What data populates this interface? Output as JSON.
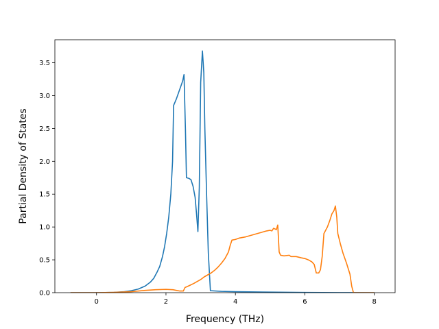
{
  "chart_data": {
    "type": "line",
    "title": "",
    "xlabel": "Frequency (THz)",
    "ylabel": "Partial Density of States",
    "xlim": [
      -1.2,
      8.6
    ],
    "ylim": [
      0.0,
      3.85
    ],
    "xticks": [
      0,
      2,
      4,
      6,
      8
    ],
    "xtick_labels": [
      "0",
      "2",
      "4",
      "6",
      "8"
    ],
    "yticks": [
      0.0,
      0.5,
      1.0,
      1.5,
      2.0,
      2.5,
      3.0,
      3.5
    ],
    "ytick_labels": [
      "0.0",
      "0.5",
      "1.0",
      "1.5",
      "2.0",
      "2.5",
      "3.0",
      "3.5"
    ],
    "grid": false,
    "legend": "none",
    "series": [
      {
        "color": "#1f77b4",
        "points": [
          [
            -0.75,
            0.0
          ],
          [
            0.0,
            0.0
          ],
          [
            0.5,
            0.005
          ],
          [
            0.8,
            0.015
          ],
          [
            1.0,
            0.03
          ],
          [
            1.2,
            0.055
          ],
          [
            1.4,
            0.1
          ],
          [
            1.55,
            0.16
          ],
          [
            1.65,
            0.22
          ],
          [
            1.75,
            0.32
          ],
          [
            1.82,
            0.4
          ],
          [
            1.9,
            0.55
          ],
          [
            1.96,
            0.7
          ],
          [
            2.02,
            0.9
          ],
          [
            2.08,
            1.15
          ],
          [
            2.14,
            1.5
          ],
          [
            2.19,
            2.0
          ],
          [
            2.22,
            2.85
          ],
          [
            2.3,
            2.95
          ],
          [
            2.4,
            3.1
          ],
          [
            2.48,
            3.22
          ],
          [
            2.52,
            3.32
          ],
          [
            2.56,
            2.5
          ],
          [
            2.59,
            1.75
          ],
          [
            2.66,
            1.74
          ],
          [
            2.72,
            1.72
          ],
          [
            2.78,
            1.62
          ],
          [
            2.84,
            1.45
          ],
          [
            2.88,
            1.2
          ],
          [
            2.92,
            0.93
          ],
          [
            2.96,
            1.6
          ],
          [
            3.0,
            3.2
          ],
          [
            3.05,
            3.68
          ],
          [
            3.09,
            3.35
          ],
          [
            3.12,
            2.5
          ],
          [
            3.17,
            1.5
          ],
          [
            3.22,
            0.6
          ],
          [
            3.28,
            0.03
          ],
          [
            3.6,
            0.02
          ],
          [
            4.0,
            0.015
          ],
          [
            5.0,
            0.008
          ],
          [
            6.0,
            0.004
          ],
          [
            7.0,
            0.001
          ],
          [
            8.0,
            0.0
          ]
        ]
      },
      {
        "color": "#ff7f0e",
        "points": [
          [
            -0.75,
            0.0
          ],
          [
            0.0,
            0.0
          ],
          [
            0.5,
            0.005
          ],
          [
            1.0,
            0.015
          ],
          [
            1.4,
            0.035
          ],
          [
            1.7,
            0.045
          ],
          [
            2.0,
            0.05
          ],
          [
            2.2,
            0.045
          ],
          [
            2.4,
            0.025
          ],
          [
            2.5,
            0.025
          ],
          [
            2.55,
            0.08
          ],
          [
            2.6,
            0.09
          ],
          [
            2.7,
            0.115
          ],
          [
            2.8,
            0.14
          ],
          [
            2.9,
            0.17
          ],
          [
            3.0,
            0.2
          ],
          [
            3.1,
            0.24
          ],
          [
            3.2,
            0.27
          ],
          [
            3.3,
            0.3
          ],
          [
            3.4,
            0.34
          ],
          [
            3.5,
            0.39
          ],
          [
            3.6,
            0.45
          ],
          [
            3.7,
            0.52
          ],
          [
            3.8,
            0.62
          ],
          [
            3.85,
            0.72
          ],
          [
            3.9,
            0.8
          ],
          [
            4.0,
            0.81
          ],
          [
            4.1,
            0.83
          ],
          [
            4.3,
            0.85
          ],
          [
            4.5,
            0.88
          ],
          [
            4.7,
            0.91
          ],
          [
            4.9,
            0.94
          ],
          [
            5.0,
            0.95
          ],
          [
            5.05,
            0.94
          ],
          [
            5.1,
            0.98
          ],
          [
            5.18,
            0.96
          ],
          [
            5.22,
            1.03
          ],
          [
            5.26,
            0.62
          ],
          [
            5.3,
            0.57
          ],
          [
            5.4,
            0.56
          ],
          [
            5.55,
            0.57
          ],
          [
            5.6,
            0.55
          ],
          [
            5.75,
            0.55
          ],
          [
            5.9,
            0.53
          ],
          [
            6.0,
            0.52
          ],
          [
            6.1,
            0.5
          ],
          [
            6.2,
            0.47
          ],
          [
            6.27,
            0.43
          ],
          [
            6.33,
            0.3
          ],
          [
            6.4,
            0.3
          ],
          [
            6.45,
            0.35
          ],
          [
            6.5,
            0.55
          ],
          [
            6.55,
            0.9
          ],
          [
            6.65,
            1.0
          ],
          [
            6.72,
            1.1
          ],
          [
            6.78,
            1.2
          ],
          [
            6.84,
            1.25
          ],
          [
            6.88,
            1.32
          ],
          [
            6.92,
            1.15
          ],
          [
            6.95,
            0.9
          ],
          [
            7.02,
            0.75
          ],
          [
            7.1,
            0.6
          ],
          [
            7.2,
            0.45
          ],
          [
            7.3,
            0.28
          ],
          [
            7.35,
            0.1
          ],
          [
            7.4,
            0.0
          ],
          [
            8.0,
            0.0
          ]
        ]
      }
    ]
  }
}
